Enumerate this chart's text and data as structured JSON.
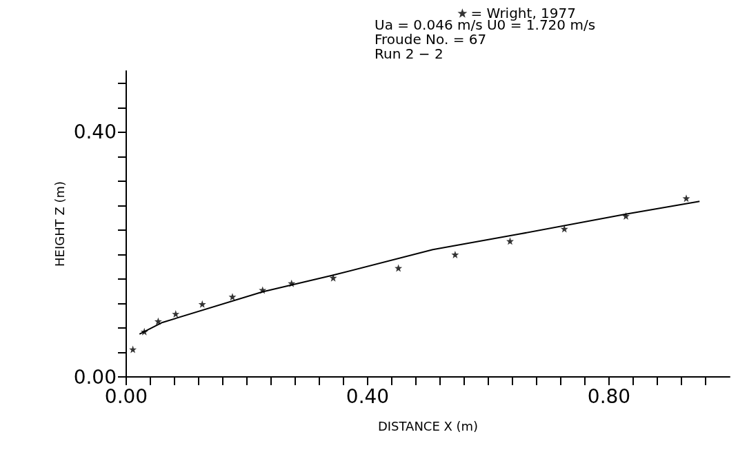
{
  "chart_data": {
    "type": "scatter",
    "xlabel": "DISTANCE X (m)",
    "ylabel": "HEIGHT Z (m)",
    "xlim": [
      0,
      1.0
    ],
    "ylim": [
      0,
      0.5
    ],
    "xticks": [
      {
        "value": 0,
        "label": "0.00"
      },
      {
        "value": 0.04,
        "label": null
      },
      {
        "value": 0.08,
        "label": null
      },
      {
        "value": 0.12,
        "label": null
      },
      {
        "value": 0.16,
        "label": null
      },
      {
        "value": 0.2,
        "label": null
      },
      {
        "value": 0.24,
        "label": null
      },
      {
        "value": 0.28,
        "label": null
      },
      {
        "value": 0.32,
        "label": null
      },
      {
        "value": 0.36,
        "label": null
      },
      {
        "value": 0.4,
        "label": "0.40"
      },
      {
        "value": 0.44,
        "label": null
      },
      {
        "value": 0.48,
        "label": null
      },
      {
        "value": 0.52,
        "label": null
      },
      {
        "value": 0.56,
        "label": null
      },
      {
        "value": 0.6,
        "label": null
      },
      {
        "value": 0.64,
        "label": null
      },
      {
        "value": 0.68,
        "label": null
      },
      {
        "value": 0.72,
        "label": null
      },
      {
        "value": 0.76,
        "label": null
      },
      {
        "value": 0.8,
        "label": "0.80"
      },
      {
        "value": 0.84,
        "label": null
      },
      {
        "value": 0.88,
        "label": null
      },
      {
        "value": 0.92,
        "label": null
      },
      {
        "value": 0.96,
        "label": null
      }
    ],
    "yticks": [
      {
        "value": 0,
        "label": "0.00"
      },
      {
        "value": 0.04,
        "label": null
      },
      {
        "value": 0.08,
        "label": null
      },
      {
        "value": 0.12,
        "label": null
      },
      {
        "value": 0.16,
        "label": null
      },
      {
        "value": 0.2,
        "label": null
      },
      {
        "value": 0.24,
        "label": null
      },
      {
        "value": 0.28,
        "label": null
      },
      {
        "value": 0.32,
        "label": null
      },
      {
        "value": 0.36,
        "label": null
      },
      {
        "value": 0.4,
        "label": "0.40"
      },
      {
        "value": 0.44,
        "label": null
      },
      {
        "value": 0.48,
        "label": null
      }
    ],
    "grid": false,
    "legend": "top right",
    "marker": "star",
    "annotations": [
      "Ua = 0.046 m/s U0 = 1.720 m/s",
      "Froude No. = 67",
      "Run 2 − 2"
    ],
    "series": [
      {
        "name": "= Wright, 1977",
        "color": "#000000",
        "x": [
          0.011,
          0.03,
          0.053,
          0.082,
          0.126,
          0.176,
          0.226,
          0.274,
          0.343,
          0.451,
          0.545,
          0.636,
          0.726,
          0.828,
          0.928
        ],
        "values": [
          0.045,
          0.074,
          0.091,
          0.103,
          0.119,
          0.131,
          0.142,
          0.153,
          0.162,
          0.178,
          0.2,
          0.222,
          0.242,
          0.263,
          0.292
        ]
      },
      {
        "type": "line",
        "color": "#000000",
        "marker": "none",
        "line_style": "solid",
        "x": [
          0.022,
          0.06,
          0.226,
          0.342,
          0.508,
          0.649,
          0.828,
          0.95
        ],
        "values": [
          0.07,
          0.089,
          0.139,
          0.166,
          0.208,
          0.233,
          0.266,
          0.287
        ]
      }
    ]
  }
}
